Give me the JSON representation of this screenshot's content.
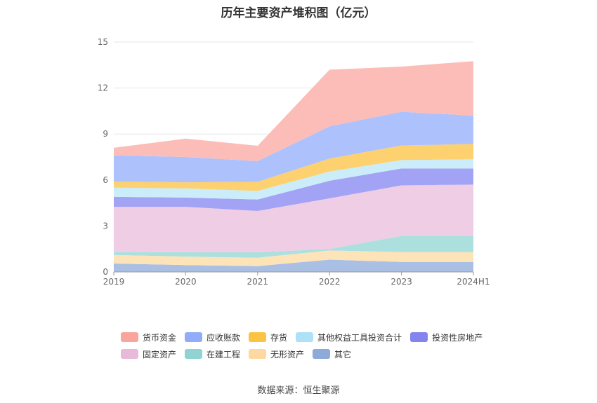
{
  "chart_data": {
    "type": "area",
    "stacked": true,
    "title": "历年主要资产堆积图（亿元）",
    "categories": [
      "2019",
      "2020",
      "2021",
      "2022",
      "2023",
      "2024H1"
    ],
    "ylim": [
      0,
      15
    ],
    "yticks": [
      0,
      3,
      6,
      9,
      12,
      15
    ],
    "grid": true,
    "legend_position": "bottom",
    "series": [
      {
        "name": "其它",
        "color": "#a9bfe3",
        "legend_color": "#8eaad8",
        "values": [
          0.55,
          0.45,
          0.38,
          0.8,
          0.65,
          0.65
        ]
      },
      {
        "name": "无形资产",
        "color": "#fde3b8",
        "legend_color": "#fdd8a0",
        "values": [
          0.55,
          0.55,
          0.55,
          0.6,
          0.65,
          0.65
        ]
      },
      {
        "name": "在建工程",
        "color": "#abe0df",
        "legend_color": "#8fd3d2",
        "values": [
          0.2,
          0.3,
          0.35,
          0.1,
          1.05,
          1.05
        ]
      },
      {
        "name": "固定资产",
        "color": "#efcde4",
        "legend_color": "#e8bad9",
        "values": [
          2.95,
          2.95,
          2.7,
          3.3,
          3.3,
          3.35
        ]
      },
      {
        "name": "投资性房地产",
        "color": "#a3a3f5",
        "legend_color": "#8484ef",
        "values": [
          0.65,
          0.6,
          0.75,
          1.15,
          1.1,
          1.05
        ]
      },
      {
        "name": "其他权益工具投资合计",
        "color": "#cbedfa",
        "legend_color": "#aee1f7",
        "values": [
          0.6,
          0.6,
          0.55,
          0.6,
          0.55,
          0.6
        ]
      },
      {
        "name": "存货",
        "color": "#fdd16f",
        "legend_color": "#fbc343",
        "values": [
          0.4,
          0.4,
          0.6,
          0.85,
          0.95,
          1.0
        ]
      },
      {
        "name": "应收账款",
        "color": "#adc1fc",
        "legend_color": "#92abfa",
        "values": [
          1.7,
          1.65,
          1.35,
          2.1,
          2.2,
          1.85
        ]
      },
      {
        "name": "货币资金",
        "color": "#fcbdb8",
        "legend_color": "#f9a59e",
        "values": [
          0.5,
          1.2,
          1.0,
          3.7,
          2.95,
          3.55
        ]
      }
    ]
  },
  "source": "数据来源：恒生聚源"
}
